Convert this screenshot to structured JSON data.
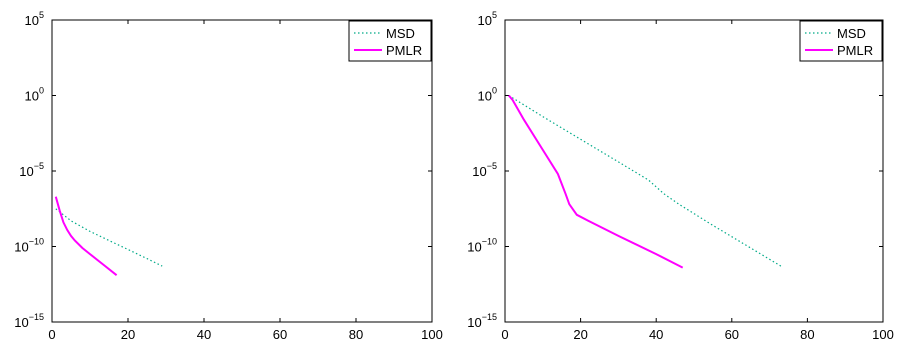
{
  "chart_data": [
    {
      "type": "line",
      "xlim": [
        0,
        100
      ],
      "ylim_exponent": [
        -15,
        5
      ],
      "yscale": "log",
      "x_ticks": [
        0,
        20,
        40,
        60,
        80,
        100
      ],
      "y_tick_exponents": [
        -15,
        -10,
        -5,
        0,
        5
      ],
      "grid": false,
      "legend": "top-right",
      "series": [
        {
          "name": "MSD",
          "color": "#00aa88",
          "style": "dotted",
          "x": [
            1,
            5,
            10,
            15,
            20,
            25,
            29
          ],
          "y_exponent": [
            -7.5,
            -8.3,
            -9.0,
            -9.6,
            -10.2,
            -10.8,
            -11.3
          ]
        },
        {
          "name": "PMLR",
          "color": "#ff00ff",
          "style": "solid",
          "x": [
            1,
            2,
            3,
            4,
            5,
            6,
            8,
            10,
            12,
            14,
            17
          ],
          "y_exponent": [
            -6.7,
            -7.6,
            -8.4,
            -8.9,
            -9.3,
            -9.6,
            -10.1,
            -10.5,
            -10.9,
            -11.3,
            -11.9
          ]
        }
      ]
    },
    {
      "type": "line",
      "xlim": [
        0,
        100
      ],
      "ylim_exponent": [
        -15,
        5
      ],
      "yscale": "log",
      "x_ticks": [
        0,
        20,
        40,
        60,
        80,
        100
      ],
      "y_tick_exponents": [
        -15,
        -10,
        -5,
        0,
        5
      ],
      "grid": false,
      "legend": "top-right",
      "series": [
        {
          "name": "MSD",
          "color": "#00aa88",
          "style": "dotted",
          "x": [
            1,
            10,
            20,
            30,
            38,
            42,
            46,
            55,
            65,
            73
          ],
          "y_exponent": [
            0.0,
            -1.4,
            -2.9,
            -4.4,
            -5.6,
            -6.5,
            -7.2,
            -8.6,
            -10.1,
            -11.3
          ]
        },
        {
          "name": "PMLR",
          "color": "#ff00ff",
          "style": "solid",
          "x": [
            1,
            2,
            5,
            10,
            14,
            16,
            17,
            19,
            22,
            30,
            40,
            47
          ],
          "y_exponent": [
            0.0,
            -0.3,
            -1.6,
            -3.6,
            -5.2,
            -6.5,
            -7.2,
            -7.9,
            -8.3,
            -9.3,
            -10.5,
            -11.4
          ]
        }
      ]
    }
  ]
}
